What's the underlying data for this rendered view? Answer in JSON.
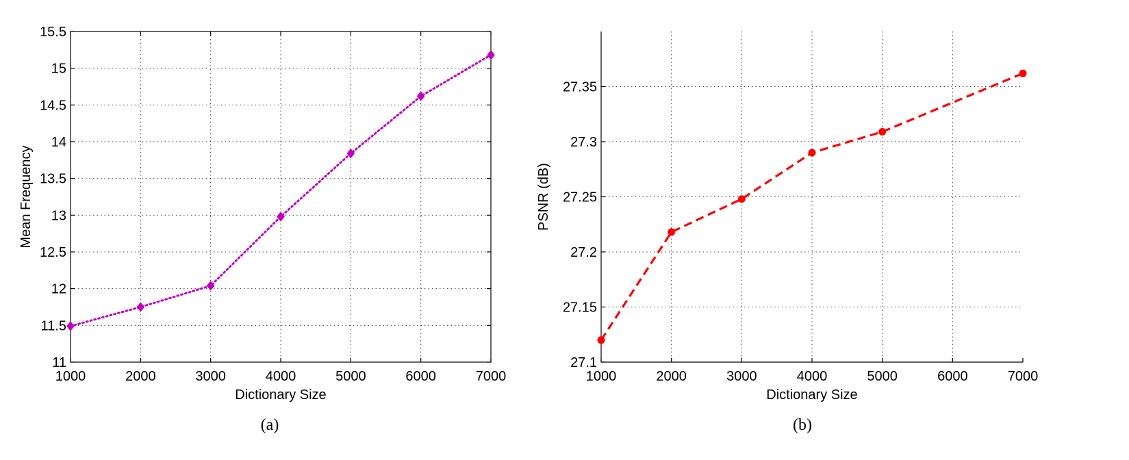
{
  "chart_data": [
    {
      "type": "line",
      "caption": "(a)",
      "xlabel": "Dictionary Size",
      "ylabel": "Mean Frequency",
      "xlim": [
        1000,
        7000
      ],
      "ylim": [
        11,
        15.5
      ],
      "xticks": [
        1000,
        2000,
        3000,
        4000,
        5000,
        6000,
        7000
      ],
      "yticks": [
        11,
        11.5,
        12,
        12.5,
        13,
        13.5,
        14,
        14.5,
        15,
        15.5
      ],
      "xtick_labels": [
        "1000",
        "2000",
        "3000",
        "4000",
        "5000",
        "6000",
        "7000"
      ],
      "ytick_labels": [
        "11",
        "11.5",
        "12",
        "12.5",
        "13",
        "13.5",
        "14",
        "14.5",
        "15",
        "15.5"
      ],
      "grid": true,
      "box": "full",
      "series": [
        {
          "x": [
            1000,
            2000,
            3000,
            4000,
            5000,
            6000,
            7000
          ],
          "y": [
            11.49,
            11.75,
            12.04,
            12.98,
            13.84,
            14.62,
            15.18
          ],
          "color": "#c000c0",
          "line_style": "dotted",
          "marker": "diamond"
        }
      ]
    },
    {
      "type": "line",
      "caption": "(b)",
      "xlabel": "Dictionary Size",
      "ylabel": "PSNR (dB)",
      "xlim": [
        1000,
        7000
      ],
      "ylim": [
        27.1,
        27.4
      ],
      "xticks": [
        1000,
        2000,
        3000,
        4000,
        5000,
        6000,
        7000
      ],
      "yticks": [
        27.1,
        27.15,
        27.2,
        27.25,
        27.3,
        27.35
      ],
      "xtick_labels": [
        "1000",
        "2000",
        "3000",
        "4000",
        "5000",
        "6000",
        "7000"
      ],
      "ytick_labels": [
        "27.1",
        "27.15",
        "27.2",
        "27.25",
        "27.3",
        "27.35"
      ],
      "grid": true,
      "box": "left-bottom",
      "series": [
        {
          "x": [
            1000,
            2000,
            3000,
            4000,
            5000,
            7000
          ],
          "y": [
            27.12,
            27.218,
            27.248,
            27.29,
            27.309,
            27.362
          ],
          "color": "#ff0000",
          "line_style": "dashed",
          "marker": "circle"
        }
      ]
    }
  ]
}
